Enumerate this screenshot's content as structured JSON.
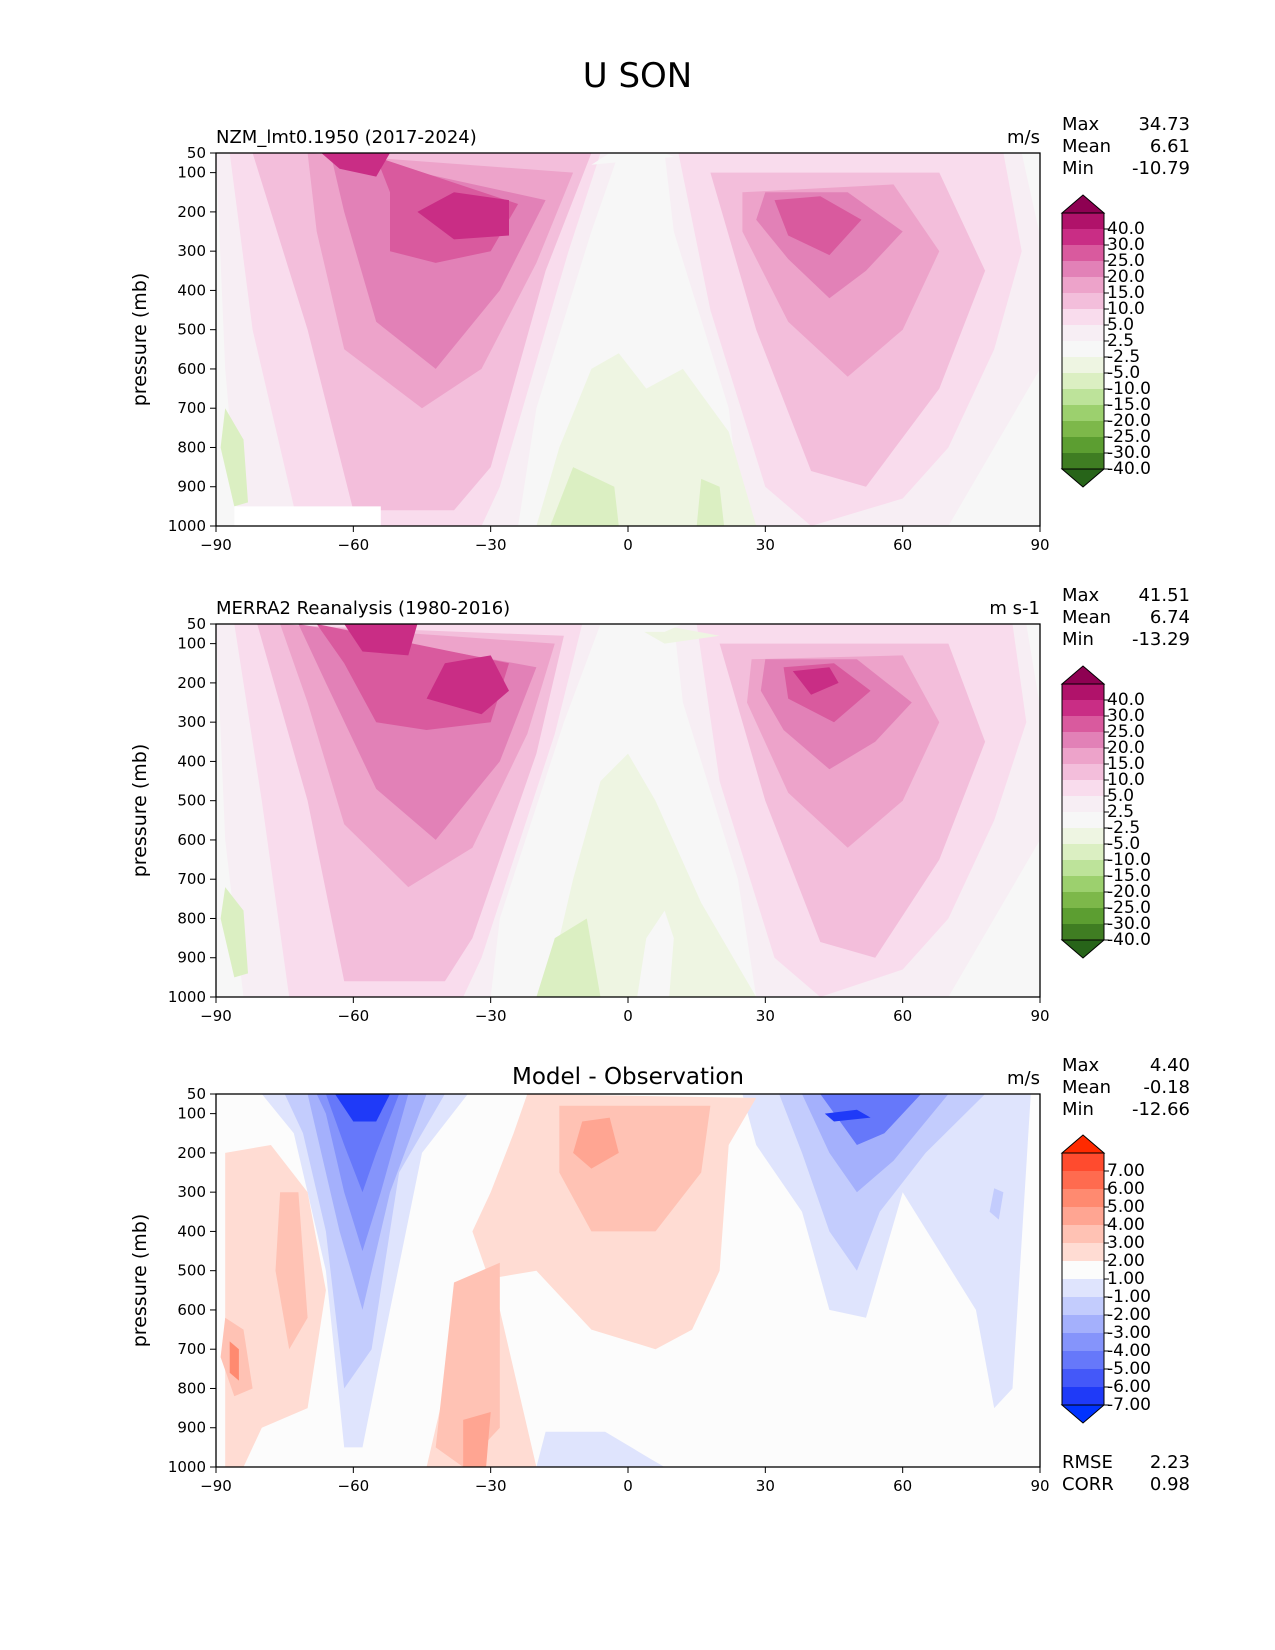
{
  "chart_data": {
    "title": "U SON",
    "type": "heatmap",
    "panels": [
      {
        "id": "model",
        "left_title": "NZM_lmt0.1950 (2017-2024)",
        "center_title": "",
        "units": "m/s",
        "ylabel": "pressure (mb)",
        "xlim": [
          -90,
          90
        ],
        "ylim": [
          1000,
          50
        ],
        "xticks": [
          -90,
          -60,
          -30,
          0,
          30,
          60,
          90
        ],
        "xtick_labels": [
          "−90",
          "−60",
          "−30",
          "0",
          "30",
          "60",
          "90"
        ],
        "yticks": [
          50,
          100,
          200,
          300,
          400,
          500,
          600,
          700,
          800,
          900,
          1000
        ],
        "stats": [
          {
            "label": "Max",
            "value": "34.73"
          },
          {
            "label": "Mean",
            "value": "6.61"
          },
          {
            "label": "Min",
            "value": "-10.79"
          }
        ],
        "colorbar": {
          "labels": [
            "40.0",
            "30.0",
            "25.0",
            "20.0",
            "15.0",
            "10.0",
            "5.0",
            "2.5",
            "-2.5",
            "-5.0",
            "-10.0",
            "-15.0",
            "-20.0",
            "-25.0",
            "-30.0",
            "-40.0"
          ],
          "colors": [
            "#8e0152",
            "#b0126a",
            "#c92d85",
            "#d95a9e",
            "#e281b7",
            "#eda3ca",
            "#f3bedb",
            "#f9dced",
            "#f7eef4",
            "#f7f7f7",
            "#eef5e2",
            "#dbefc2",
            "#bde39a",
            "#9cd06e",
            "#7db84a",
            "#5c9e31",
            "#3f7d22",
            "#276419"
          ]
        },
        "features": [
          {
            "lat": -45,
            "p": 200,
            "u": 34
          },
          {
            "lat": 40,
            "p": 200,
            "u": 22
          },
          {
            "lat": 5,
            "p": 850,
            "u": -2
          }
        ]
      },
      {
        "id": "obs",
        "left_title": "MERRA2 Reanalysis (1980-2016)",
        "center_title": "",
        "units": "m s-1",
        "ylabel": "pressure (mb)",
        "xlim": [
          -90,
          90
        ],
        "ylim": [
          1000,
          50
        ],
        "xticks": [
          -90,
          -60,
          -30,
          0,
          30,
          60,
          90
        ],
        "xtick_labels": [
          "−90",
          "−60",
          "−30",
          "0",
          "30",
          "60",
          "90"
        ],
        "yticks": [
          50,
          100,
          200,
          300,
          400,
          500,
          600,
          700,
          800,
          900,
          1000
        ],
        "stats": [
          {
            "label": "Max",
            "value": "41.51"
          },
          {
            "label": "Mean",
            "value": "6.74"
          },
          {
            "label": "Min",
            "value": "-13.29"
          }
        ],
        "colorbar": {
          "labels": [
            "40.0",
            "30.0",
            "25.0",
            "20.0",
            "15.0",
            "10.0",
            "5.0",
            "2.5",
            "-2.5",
            "-5.0",
            "-10.0",
            "-15.0",
            "-20.0",
            "-25.0",
            "-30.0",
            "-40.0"
          ],
          "colors": [
            "#8e0152",
            "#b0126a",
            "#c92d85",
            "#d95a9e",
            "#e281b7",
            "#eda3ca",
            "#f3bedb",
            "#f9dced",
            "#f7eef4",
            "#f7f7f7",
            "#eef5e2",
            "#dbefc2",
            "#bde39a",
            "#9cd06e",
            "#7db84a",
            "#5c9e31",
            "#3f7d22",
            "#276419"
          ]
        },
        "features": [
          {
            "lat": -55,
            "p": 100,
            "u": 41
          },
          {
            "lat": 42,
            "p": 200,
            "u": 26
          },
          {
            "lat": -12,
            "p": 850,
            "u": -5
          }
        ]
      },
      {
        "id": "diff",
        "left_title": "",
        "center_title": "Model - Observation",
        "units": "m/s",
        "ylabel": "pressure (mb)",
        "xlim": [
          -90,
          90
        ],
        "ylim": [
          1000,
          50
        ],
        "xticks": [
          -90,
          -60,
          -30,
          0,
          30,
          60,
          90
        ],
        "xtick_labels": [
          "−90",
          "−60",
          "−30",
          "0",
          "30",
          "60",
          "90"
        ],
        "yticks": [
          50,
          100,
          200,
          300,
          400,
          500,
          600,
          700,
          800,
          900,
          1000
        ],
        "stats": [
          {
            "label": "Max",
            "value": "4.40"
          },
          {
            "label": "Mean",
            "value": "-0.18"
          },
          {
            "label": "Min",
            "value": "-12.66"
          }
        ],
        "bottom_stats": [
          {
            "label": "RMSE",
            "value": "2.23"
          },
          {
            "label": "CORR",
            "value": "0.98"
          }
        ],
        "colorbar": {
          "labels": [
            "7.00",
            "6.00",
            "5.00",
            "4.00",
            "3.00",
            "2.00",
            "1.00",
            "-1.00",
            "-2.00",
            "-3.00",
            "-4.00",
            "-5.00",
            "-6.00",
            "-7.00"
          ],
          "colors": [
            "#ff2a00",
            "#ff4b2e",
            "#ff6b4f",
            "#ff8a70",
            "#ffa592",
            "#ffc2b4",
            "#ffdcd3",
            "#fcfcfc",
            "#dfe4fd",
            "#c3ccfd",
            "#a4b0fc",
            "#8594fb",
            "#6678fa",
            "#4458f9",
            "#1f3af8",
            "#0033ff"
          ]
        },
        "features": [
          {
            "lat": -57,
            "p": 80,
            "u": -12
          },
          {
            "lat": -5,
            "p": 300,
            "u": 4
          },
          {
            "lat": 48,
            "p": 100,
            "u": -7
          },
          {
            "lat": -85,
            "p": 720,
            "u": 4
          }
        ]
      }
    ]
  }
}
